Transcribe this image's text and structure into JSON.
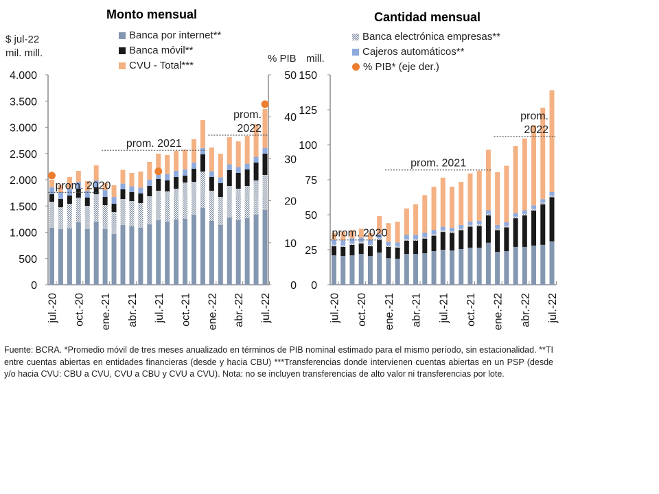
{
  "footnote": "Fuente: BCRA. *Promedio móvil de tres meses anualizado en términos de PIB nominal estimado para el mismo período, sin estacionalidad. **TI entre cuentas abiertas en entidades financieras (desde y hacia CBU) ***Transferencias donde intervienen cuentas abiertas en un PSP (desde y/o hacia CVU: CBU a CVU, CVU a CBU y CVU a CVU). Nota: no se incluyen transferencias de alto valor ni transferencias por lote.",
  "colors": {
    "banca_internet": "#8497B0",
    "banca_electronica": "#A9B4C4",
    "banca_movil": "#1A1A1A",
    "cajeros": "#8FAADC",
    "cvu": "#F4B183",
    "pib": "#ED7D31"
  },
  "legend_left": [
    {
      "label": "Banca por internet**",
      "key": "banca_internet"
    },
    {
      "label": "Banca móvil**",
      "key": "banca_movil"
    },
    {
      "label": "CVU - Total***",
      "key": "cvu"
    }
  ],
  "legend_right": [
    {
      "label": "Banca electrónica empresas**",
      "key": "banca_electronica"
    },
    {
      "label": "Cajeros automáticos**",
      "key": "cajeros"
    },
    {
      "label": "% PIB* (eje der.)",
      "key": "pib"
    }
  ],
  "chart_data": [
    {
      "type": "bar",
      "stacked": true,
      "title": "Monto mensual",
      "ylabel": "$ jul-22 mil. mill.",
      "ylabel_lines": [
        "$ jul-22",
        "mil. mill."
      ],
      "y2label": "% PIB",
      "ylim": [
        0,
        4000
      ],
      "yticks": [
        "4.000",
        "3.500",
        "3.000",
        "2.500",
        "2.000",
        "1.500",
        "1.000",
        "500",
        "0"
      ],
      "y2lim": [
        0,
        50
      ],
      "y2ticks": [
        "50",
        "40",
        "30",
        "20",
        "10",
        "0"
      ],
      "categories": [
        "jul-20",
        "ago-20",
        "sep-20",
        "oct-20",
        "nov-20",
        "dic-20",
        "ene-21",
        "feb-21",
        "mar-21",
        "abr-21",
        "may-21",
        "jun-21",
        "jul-21",
        "ago-21",
        "sep-21",
        "oct-21",
        "nov-21",
        "dic-21",
        "ene-22",
        "feb-22",
        "mar-22",
        "abr-22",
        "may-22",
        "jun-22",
        "jul-22"
      ],
      "xtick_labels": [
        "jul.-20",
        "oct.-20",
        "ene.-21",
        "abr.-21",
        "jul.-21",
        "oct.-21",
        "ene.-22",
        "abr.-22",
        "jul.-22"
      ],
      "series": [
        {
          "name": "Banca por internet**",
          "key": "banca_internet",
          "values": [
            1085,
            1059,
            1072,
            1190,
            1059,
            1200,
            1059,
            967,
            1137,
            1111,
            1085,
            1150,
            1229,
            1203,
            1242,
            1255,
            1333,
            1464,
            1216,
            1137,
            1281,
            1229,
            1268,
            1333,
            1425
          ]
        },
        {
          "name": "Banca electrónica empresas**",
          "key": "banca_electronica",
          "values": [
            497,
            418,
            470,
            470,
            444,
            525,
            457,
            419,
            497,
            484,
            470,
            536,
            562,
            575,
            588,
            693,
            627,
            693,
            575,
            536,
            601,
            601,
            614,
            654,
            667
          ]
        },
        {
          "name": "Banca móvil**",
          "key": "banca_movil",
          "values": [
            143,
            157,
            157,
            170,
            157,
            131,
            157,
            156,
            183,
            170,
            184,
            196,
            222,
            209,
            222,
            130,
            249,
            327,
            261,
            262,
            301,
            301,
            314,
            340,
            405
          ]
        },
        {
          "name": "Cajeros automáticos**",
          "key": "cajeros",
          "values": [
            130,
            130,
            130,
            130,
            130,
            130,
            130,
            130,
            110,
            110,
            110,
            120,
            120,
            120,
            120,
            120,
            120,
            120,
            110,
            110,
            110,
            110,
            110,
            110,
            110
          ]
        },
        {
          "name": "CVU - Total***",
          "key": "cvu",
          "values": [
            145,
            131,
            223,
            210,
            184,
            289,
            132,
            223,
            263,
            256,
            308,
            338,
            364,
            364,
            377,
            377,
            442,
            533,
            452,
            452,
            517,
            491,
            530,
            622,
            739
          ]
        }
      ],
      "pib_points": [
        {
          "category": "jul-20",
          "value": 26
        },
        {
          "category": "jul-21",
          "value": 27
        },
        {
          "category": "jul-22",
          "value": 43
        }
      ],
      "annotations": [
        {
          "text": "prom. 2020",
          "from": "jul-20",
          "to": "dic-20",
          "value": 1760
        },
        {
          "text": "prom. 2021",
          "from": "ene-21",
          "to": "dic-21",
          "value": 2560
        },
        {
          "text_lines": [
            "prom.",
            "2022"
          ],
          "from": "ene-22",
          "to": "jul-22",
          "value": 2850
        }
      ]
    },
    {
      "type": "bar",
      "stacked": true,
      "title": "Cantidad mensual",
      "ylabel": "mill.",
      "ylim": [
        0,
        150
      ],
      "yticks": [
        "150",
        "125",
        "100",
        "75",
        "50",
        "25",
        "0"
      ],
      "categories": [
        "jul-20",
        "ago-20",
        "sep-20",
        "oct-20",
        "nov-20",
        "dic-20",
        "ene-21",
        "feb-21",
        "mar-21",
        "abr-21",
        "may-21",
        "jun-21",
        "jul-21",
        "ago-21",
        "sep-21",
        "oct-21",
        "nov-21",
        "dic-21",
        "ene-22",
        "feb-22",
        "mar-22",
        "abr-22",
        "may-22",
        "jun-22",
        "jul-22"
      ],
      "xtick_labels": [
        "jul.-20",
        "oct.-20",
        "ene.-21",
        "abr.-21",
        "jul.-21",
        "oct.-21",
        "ene.-22",
        "abr.-22",
        "jul.-22"
      ],
      "series": [
        {
          "name": "Banca por internet**",
          "key": "banca_internet",
          "values": [
            21,
            20.6,
            21,
            22,
            20.5,
            23,
            19,
            18.6,
            22,
            22,
            22.5,
            24,
            25,
            24.5,
            25.5,
            26.5,
            26.5,
            30,
            23.5,
            24,
            27,
            27,
            28,
            28.5,
            31
          ]
        },
        {
          "name": "Banca móvil**",
          "key": "banca_movil",
          "values": [
            6.5,
            6.4,
            7.5,
            7.5,
            7,
            9,
            8,
            7.9,
            9.5,
            9.5,
            10.5,
            11,
            12.7,
            12.5,
            13.5,
            15,
            15.5,
            19.5,
            15.5,
            17,
            20.5,
            22.5,
            25,
            29,
            31.5
          ]
        },
        {
          "name": "Banca electrónica empresas**",
          "key": "banca_electronica",
          "values": [
            1.2,
            1.2,
            1.2,
            1.2,
            1.2,
            1.2,
            1.2,
            1.2,
            1.2,
            1.2,
            1.2,
            1.2,
            1.2,
            1.2,
            1.2,
            1.2,
            1.2,
            1.2,
            1.2,
            1.2,
            1.2,
            1.2,
            1.2,
            1.2,
            1.2
          ]
        },
        {
          "name": "Cajeros automáticos**",
          "key": "cajeros",
          "values": [
            3.5,
            3.5,
            3.5,
            3,
            3.5,
            3,
            2.5,
            2.5,
            3,
            3,
            3,
            3,
            2.5,
            2.5,
            2.5,
            2.5,
            2.5,
            2.5,
            2.5,
            2.5,
            2.5,
            2.5,
            2.5,
            2.5,
            2.5
          ]
        },
        {
          "name": "CVU - Total***",
          "key": "cvu",
          "values": [
            4.8,
            6.3,
            5.8,
            6.3,
            4.8,
            12.8,
            13.3,
            14.8,
            18.8,
            21.8,
            26.8,
            30.8,
            35.1,
            29.3,
            30.8,
            34.3,
            35.8,
            43.3,
            37.8,
            40.3,
            47.8,
            51.3,
            57.3,
            65.3,
            72.8
          ]
        }
      ],
      "annotations": [
        {
          "text": "prom. 2020",
          "from": "jul-20",
          "to": "dic-20",
          "value": 32
        },
        {
          "text": "prom. 2021",
          "from": "ene-21",
          "to": "dic-21",
          "value": 82
        },
        {
          "text_lines": [
            "prom.",
            "2022"
          ],
          "from": "ene-22",
          "to": "jul-22",
          "value": 106
        }
      ]
    }
  ]
}
